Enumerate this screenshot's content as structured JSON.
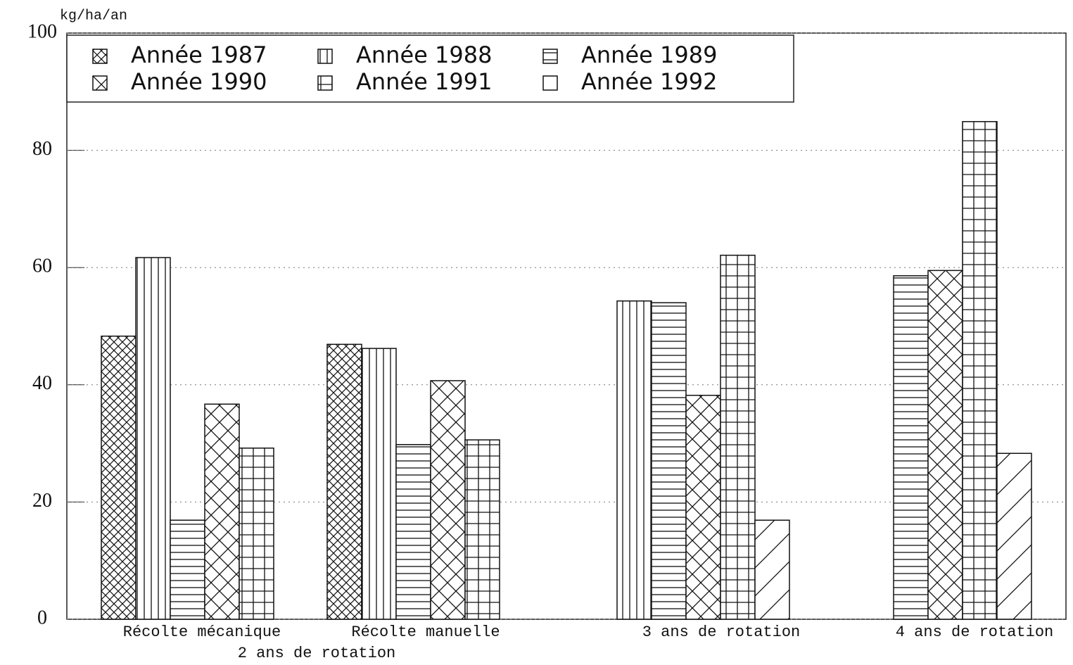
{
  "chart_data": {
    "type": "bar",
    "y_label": "kg/ha/an",
    "categories": [
      "Récolte mécanique",
      "Récolte manuelle",
      "3 ans de rotation",
      "4 ans de rotation"
    ],
    "annotation": "2 ans de rotation",
    "ylim": [
      0,
      100
    ],
    "yticks": [
      0,
      20,
      40,
      60,
      80,
      100
    ],
    "grid": true,
    "series": [
      {
        "name": "Année 1987",
        "color": "#111111",
        "pattern": "dense-crosshatch",
        "values": [
          48.3,
          46.9,
          null,
          null
        ]
      },
      {
        "name": "Année 1988",
        "color": "#111111",
        "pattern": "vertical",
        "values": [
          61.7,
          46.2,
          54.3,
          null
        ]
      },
      {
        "name": "Année 1989",
        "color": "#111111",
        "pattern": "horizontal",
        "values": [
          16.9,
          29.8,
          54,
          58.6
        ]
      },
      {
        "name": "Année 1990",
        "color": "#111111",
        "pattern": "crosshatch",
        "values": [
          36.7,
          40.7,
          38.2,
          59.5
        ]
      },
      {
        "name": "Année 1991",
        "color": "#111111",
        "pattern": "grid",
        "values": [
          29.2,
          30.6,
          62.1,
          84.9
        ]
      },
      {
        "name": "Année 1992",
        "color": "#111111",
        "pattern": "diagonal",
        "values": [
          null,
          null,
          16.9,
          28.3
        ]
      }
    ]
  }
}
